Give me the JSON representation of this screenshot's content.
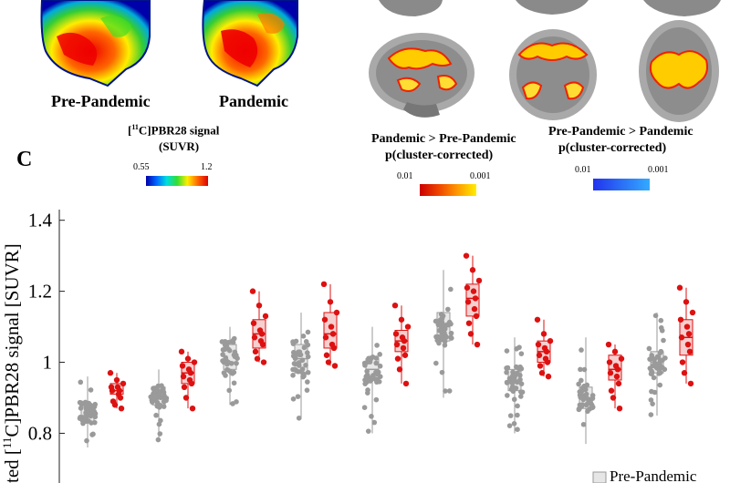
{
  "top_left": {
    "labels": [
      "Pre-Pandemic",
      "Pandemic"
    ],
    "colorbar_title_sup": "11",
    "colorbar_title_pre": "[",
    "colorbar_title_post": "C]PBR28 signal",
    "colorbar_subtitle": "(SUVR)",
    "colorbar_min": "0.55",
    "colorbar_max": "1.2"
  },
  "top_right": {
    "contrast_up_title": "Pandemic > Pre-Pandemic",
    "contrast_up_sub": "p(cluster-corrected)",
    "contrast_up_min": "0.01",
    "contrast_up_max": "0.001",
    "contrast_down_title": "Pre-Pandemic > Pandemic",
    "contrast_down_sub": "p(cluster-corrected)",
    "contrast_down_min": "0.01",
    "contrast_down_max": "0.001"
  },
  "panel_letter": "C",
  "colors": {
    "pre": "#9a9a9a",
    "pandemic": "#dd1111",
    "box_pre_fill": "#e8e8e8",
    "box_pan_fill": "#f6cfcf",
    "up_bar": [
      "#cc0000",
      "#ee4400",
      "#ffcc00"
    ],
    "down_bar": [
      "#2233ee",
      "#33aaff"
    ]
  },
  "chart_data": {
    "type": "box",
    "ylabel_pre": "ted [",
    "ylabel_sup": "11",
    "ylabel_post": "C]PBR28 signal [SUVR]",
    "yticks": [
      "0.8",
      "1",
      "1.2",
      "1.4"
    ],
    "ylim": [
      0.66,
      1.43
    ],
    "legend": [
      "Pre-Pandemic"
    ],
    "legend_placement": "bottom-right",
    "groups": [
      {
        "pre": {
          "q1": 0.83,
          "med": 0.85,
          "q3": 0.88,
          "wlo": 0.76,
          "whi": 0.96
        },
        "pan": {
          "q1": 0.91,
          "med": 0.92,
          "q3": 0.94,
          "wlo": 0.87,
          "whi": 0.97
        },
        "pan_points": [
          0.97,
          0.95,
          0.94,
          0.93,
          0.93,
          0.92,
          0.92,
          0.91,
          0.9,
          0.89,
          0.88,
          0.87
        ]
      },
      {
        "pre": {
          "q1": 0.88,
          "med": 0.9,
          "q3": 0.93,
          "wlo": 0.78,
          "whi": 0.98
        },
        "pan": {
          "q1": 0.94,
          "med": 0.97,
          "q3": 1.0,
          "wlo": 0.87,
          "whi": 1.03
        },
        "pan_points": [
          1.03,
          1.01,
          1.0,
          0.99,
          0.98,
          0.97,
          0.96,
          0.95,
          0.94,
          0.93,
          0.9,
          0.87
        ]
      },
      {
        "pre": {
          "q1": 0.98,
          "med": 1.0,
          "q3": 1.05,
          "wlo": 0.88,
          "whi": 1.1
        },
        "pan": {
          "q1": 1.04,
          "med": 1.08,
          "q3": 1.12,
          "wlo": 1.0,
          "whi": 1.2
        },
        "pan_points": [
          1.2,
          1.16,
          1.13,
          1.11,
          1.09,
          1.08,
          1.07,
          1.06,
          1.05,
          1.03,
          1.01,
          1.0
        ]
      },
      {
        "pre": {
          "q1": 0.97,
          "med": 1.01,
          "q3": 1.05,
          "wlo": 0.84,
          "whi": 1.14
        },
        "pan": {
          "q1": 1.04,
          "med": 1.08,
          "q3": 1.14,
          "wlo": 0.99,
          "whi": 1.22
        },
        "pan_points": [
          1.22,
          1.17,
          1.14,
          1.12,
          1.1,
          1.08,
          1.07,
          1.05,
          1.04,
          1.02,
          1.0,
          0.99
        ]
      },
      {
        "pre": {
          "q1": 0.95,
          "med": 0.98,
          "q3": 1.01,
          "wlo": 0.8,
          "whi": 1.1
        },
        "pan": {
          "q1": 1.03,
          "med": 1.06,
          "q3": 1.09,
          "wlo": 0.94,
          "whi": 1.16
        },
        "pan_points": [
          1.16,
          1.12,
          1.1,
          1.08,
          1.07,
          1.06,
          1.05,
          1.04,
          1.02,
          1.01,
          0.98,
          0.94
        ]
      },
      {
        "pre": {
          "q1": 1.06,
          "med": 1.1,
          "q3": 1.14,
          "wlo": 0.9,
          "whi": 1.26
        },
        "pan": {
          "q1": 1.13,
          "med": 1.18,
          "q3": 1.22,
          "wlo": 1.05,
          "whi": 1.3
        },
        "pan_points": [
          1.3,
          1.26,
          1.23,
          1.21,
          1.2,
          1.18,
          1.17,
          1.15,
          1.13,
          1.11,
          1.08,
          1.05
        ]
      },
      {
        "pre": {
          "q1": 0.92,
          "med": 0.95,
          "q3": 0.98,
          "wlo": 0.8,
          "whi": 1.07
        },
        "pan": {
          "q1": 1.0,
          "med": 1.03,
          "q3": 1.06,
          "wlo": 0.96,
          "whi": 1.12
        },
        "pan_points": [
          1.12,
          1.08,
          1.06,
          1.05,
          1.04,
          1.03,
          1.02,
          1.01,
          1.0,
          0.99,
          0.97,
          0.96
        ]
      },
      {
        "pre": {
          "q1": 0.87,
          "med": 0.9,
          "q3": 0.93,
          "wlo": 0.77,
          "whi": 1.07
        },
        "pan": {
          "q1": 0.95,
          "med": 0.98,
          "q3": 1.02,
          "wlo": 0.87,
          "whi": 1.05
        },
        "pan_points": [
          1.05,
          1.03,
          1.01,
          1.0,
          0.99,
          0.98,
          0.97,
          0.96,
          0.94,
          0.92,
          0.9,
          0.87
        ]
      },
      {
        "pre": {
          "q1": 0.97,
          "med": 1.0,
          "q3": 1.03,
          "wlo": 0.85,
          "whi": 1.14
        },
        "pan": {
          "q1": 1.02,
          "med": 1.07,
          "q3": 1.12,
          "wlo": 0.94,
          "whi": 1.21
        },
        "pan_points": [
          1.21,
          1.17,
          1.14,
          1.12,
          1.1,
          1.08,
          1.07,
          1.05,
          1.03,
          1.0,
          0.97,
          0.94
        ]
      }
    ]
  }
}
